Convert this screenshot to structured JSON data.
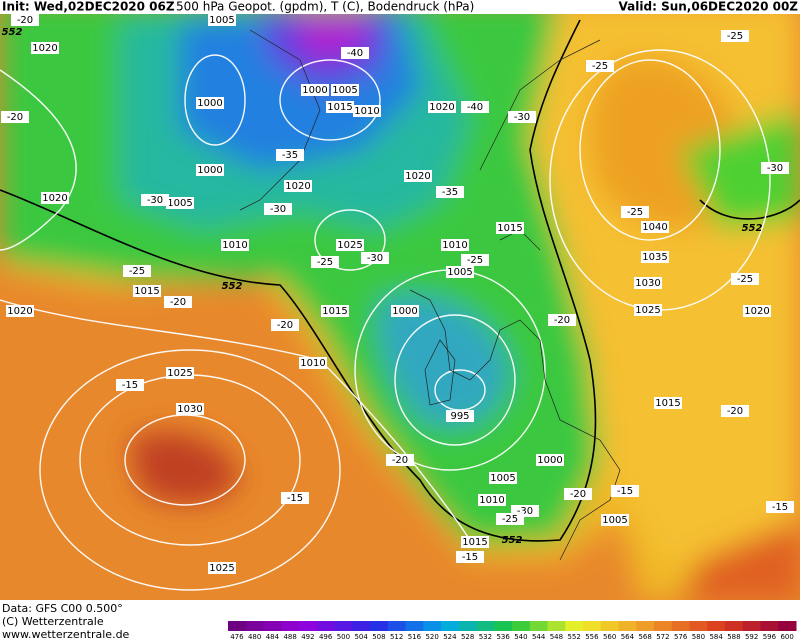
{
  "header": {
    "init": "Init: Wed,02DEC2020 06Z",
    "title": "500 hPa Geopot. (gpdm), T (C), Bodendruck (hPa)",
    "valid": "Valid: Sun,06DEC2020 00Z"
  },
  "footer": [
    "Data: GFS C00 0.500°",
    "(C) Wetterzentrale",
    "www.wetterzentrale.de"
  ],
  "isobar_labels": [
    1005,
    1020,
    1000,
    1000,
    1005,
    1015,
    1010,
    1020,
    1000,
    1020,
    1020,
    1005,
    1020,
    1010,
    1025,
    1010,
    1005,
    1015,
    1040,
    1035,
    1030,
    1025,
    1020,
    1015,
    1015,
    1000,
    1020,
    1010,
    1025,
    1030,
    995,
    1015,
    1000,
    1005,
    1010,
    1005,
    1015,
    1025
  ],
  "temperature_labels": [
    -20,
    -40,
    -40,
    -25,
    -25,
    -20,
    -30,
    -35,
    -30,
    -30,
    -35,
    -25,
    -25,
    -30,
    -25,
    -25,
    -20,
    -20,
    -20,
    -25,
    -30,
    -15,
    -20,
    -20,
    -15,
    -15,
    -20,
    -30,
    -25,
    -15,
    -15
  ],
  "height_labels": [
    552,
    552,
    552,
    552
  ],
  "colorbar": [
    476,
    480,
    484,
    488,
    492,
    496,
    500,
    504,
    508,
    512,
    516,
    520,
    524,
    528,
    532,
    536,
    540,
    544,
    548,
    552,
    556,
    560,
    564,
    568,
    572,
    576,
    580,
    584,
    588,
    592,
    596,
    600
  ]
}
